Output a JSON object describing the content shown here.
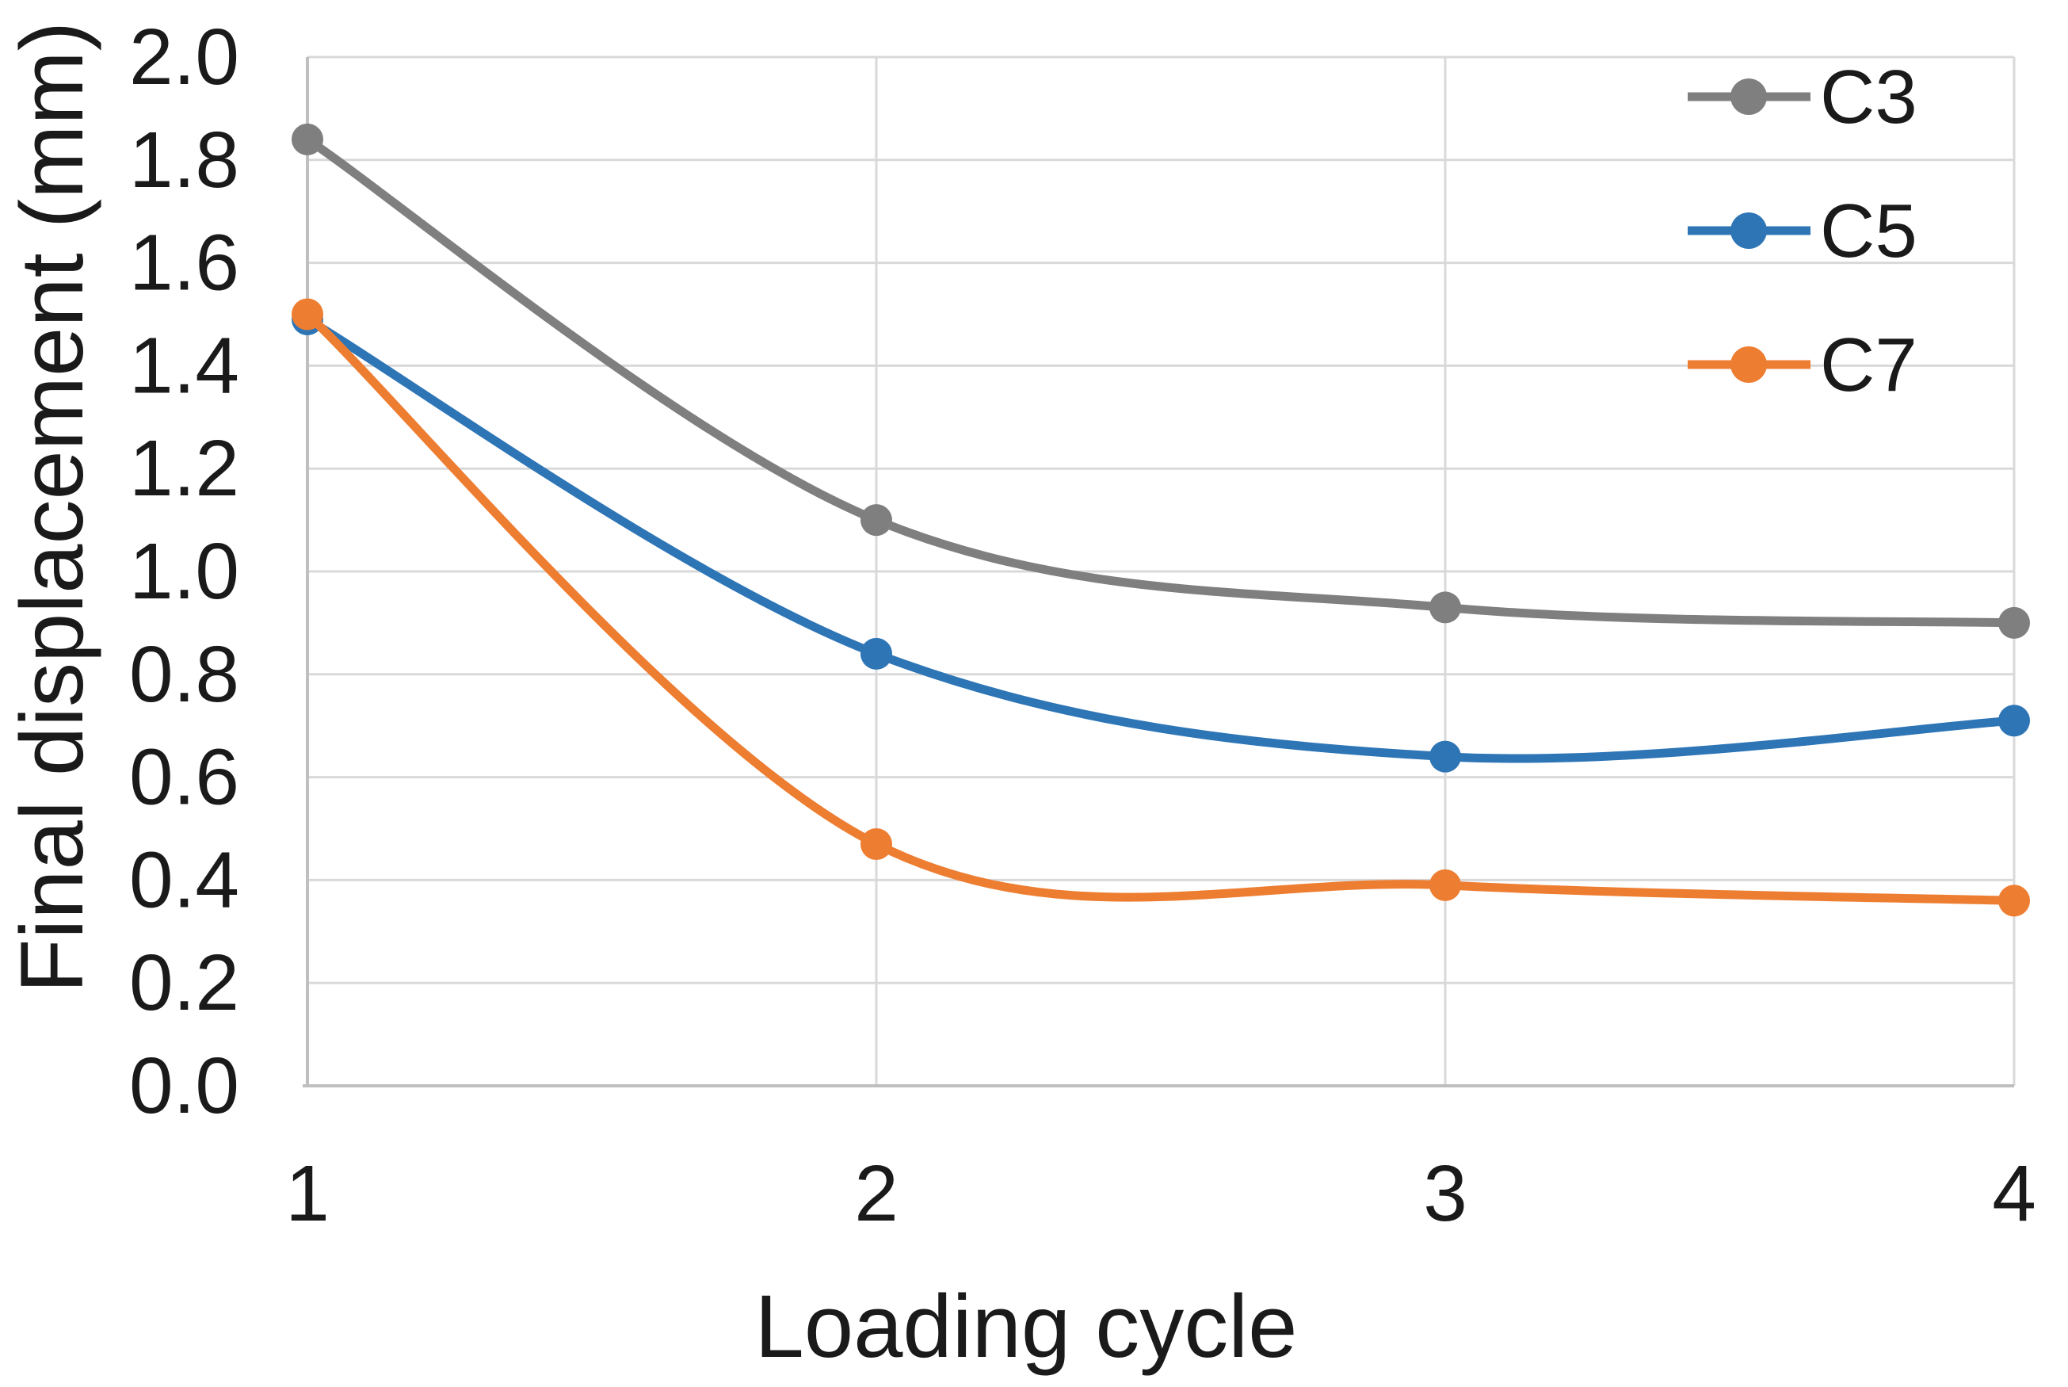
{
  "chart_data": {
    "type": "line",
    "title": "",
    "xlabel": "Loading cycle",
    "ylabel": "Final displacement (mm)",
    "categories": [
      "1",
      "2",
      "3",
      "4"
    ],
    "series": [
      {
        "name": "C3",
        "color": "#7F7F7F",
        "values": [
          1.84,
          1.1,
          0.93,
          0.9
        ]
      },
      {
        "name": "C5",
        "color": "#2E75B6",
        "values": [
          1.49,
          0.84,
          0.64,
          0.71
        ]
      },
      {
        "name": "C7",
        "color": "#ED7D31",
        "values": [
          1.5,
          0.47,
          0.39,
          0.36
        ]
      }
    ],
    "ylim": [
      0.0,
      2.0
    ],
    "ytick_step": 0.2,
    "ytick_decimals": 1,
    "grid": true,
    "smoothed_lines": true,
    "legend_position": "top-right-inside",
    "legend_labels": [
      "C3",
      "C5",
      "C7"
    ],
    "colors": {
      "gridline": "#D9D9D9",
      "axis": "#BFBFBF",
      "text": "#1A1A1A",
      "background": "#FFFFFF"
    }
  }
}
